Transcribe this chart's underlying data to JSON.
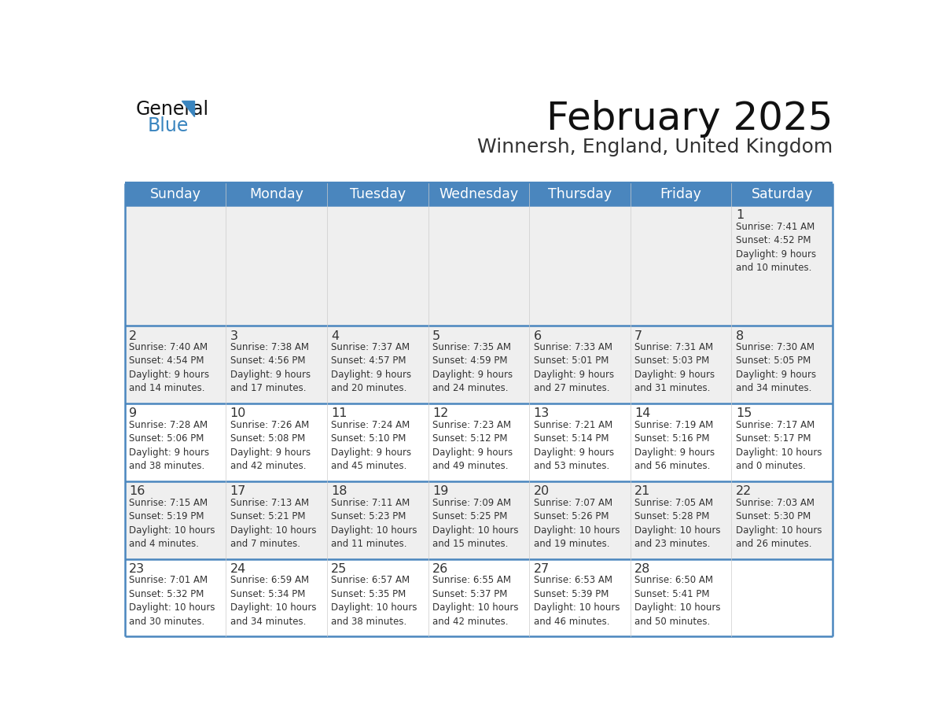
{
  "title": "February 2025",
  "subtitle": "Winnersh, England, United Kingdom",
  "header_bg": "#4a86be",
  "header_text_color": "#ffffff",
  "row_bg_gray": "#efefef",
  "row_bg_white": "#ffffff",
  "border_color": "#4a86be",
  "day_headers": [
    "Sunday",
    "Monday",
    "Tuesday",
    "Wednesday",
    "Thursday",
    "Friday",
    "Saturday"
  ],
  "days": [
    {
      "day": 1,
      "col": 6,
      "row": 0,
      "sunrise": "7:41 AM",
      "sunset": "4:52 PM",
      "daylight": "9 hours\nand 10 minutes."
    },
    {
      "day": 2,
      "col": 0,
      "row": 1,
      "sunrise": "7:40 AM",
      "sunset": "4:54 PM",
      "daylight": "9 hours\nand 14 minutes."
    },
    {
      "day": 3,
      "col": 1,
      "row": 1,
      "sunrise": "7:38 AM",
      "sunset": "4:56 PM",
      "daylight": "9 hours\nand 17 minutes."
    },
    {
      "day": 4,
      "col": 2,
      "row": 1,
      "sunrise": "7:37 AM",
      "sunset": "4:57 PM",
      "daylight": "9 hours\nand 20 minutes."
    },
    {
      "day": 5,
      "col": 3,
      "row": 1,
      "sunrise": "7:35 AM",
      "sunset": "4:59 PM",
      "daylight": "9 hours\nand 24 minutes."
    },
    {
      "day": 6,
      "col": 4,
      "row": 1,
      "sunrise": "7:33 AM",
      "sunset": "5:01 PM",
      "daylight": "9 hours\nand 27 minutes."
    },
    {
      "day": 7,
      "col": 5,
      "row": 1,
      "sunrise": "7:31 AM",
      "sunset": "5:03 PM",
      "daylight": "9 hours\nand 31 minutes."
    },
    {
      "day": 8,
      "col": 6,
      "row": 1,
      "sunrise": "7:30 AM",
      "sunset": "5:05 PM",
      "daylight": "9 hours\nand 34 minutes."
    },
    {
      "day": 9,
      "col": 0,
      "row": 2,
      "sunrise": "7:28 AM",
      "sunset": "5:06 PM",
      "daylight": "9 hours\nand 38 minutes."
    },
    {
      "day": 10,
      "col": 1,
      "row": 2,
      "sunrise": "7:26 AM",
      "sunset": "5:08 PM",
      "daylight": "9 hours\nand 42 minutes."
    },
    {
      "day": 11,
      "col": 2,
      "row": 2,
      "sunrise": "7:24 AM",
      "sunset": "5:10 PM",
      "daylight": "9 hours\nand 45 minutes."
    },
    {
      "day": 12,
      "col": 3,
      "row": 2,
      "sunrise": "7:23 AM",
      "sunset": "5:12 PM",
      "daylight": "9 hours\nand 49 minutes."
    },
    {
      "day": 13,
      "col": 4,
      "row": 2,
      "sunrise": "7:21 AM",
      "sunset": "5:14 PM",
      "daylight": "9 hours\nand 53 minutes."
    },
    {
      "day": 14,
      "col": 5,
      "row": 2,
      "sunrise": "7:19 AM",
      "sunset": "5:16 PM",
      "daylight": "9 hours\nand 56 minutes."
    },
    {
      "day": 15,
      "col": 6,
      "row": 2,
      "sunrise": "7:17 AM",
      "sunset": "5:17 PM",
      "daylight": "10 hours\nand 0 minutes."
    },
    {
      "day": 16,
      "col": 0,
      "row": 3,
      "sunrise": "7:15 AM",
      "sunset": "5:19 PM",
      "daylight": "10 hours\nand 4 minutes."
    },
    {
      "day": 17,
      "col": 1,
      "row": 3,
      "sunrise": "7:13 AM",
      "sunset": "5:21 PM",
      "daylight": "10 hours\nand 7 minutes."
    },
    {
      "day": 18,
      "col": 2,
      "row": 3,
      "sunrise": "7:11 AM",
      "sunset": "5:23 PM",
      "daylight": "10 hours\nand 11 minutes."
    },
    {
      "day": 19,
      "col": 3,
      "row": 3,
      "sunrise": "7:09 AM",
      "sunset": "5:25 PM",
      "daylight": "10 hours\nand 15 minutes."
    },
    {
      "day": 20,
      "col": 4,
      "row": 3,
      "sunrise": "7:07 AM",
      "sunset": "5:26 PM",
      "daylight": "10 hours\nand 19 minutes."
    },
    {
      "day": 21,
      "col": 5,
      "row": 3,
      "sunrise": "7:05 AM",
      "sunset": "5:28 PM",
      "daylight": "10 hours\nand 23 minutes."
    },
    {
      "day": 22,
      "col": 6,
      "row": 3,
      "sunrise": "7:03 AM",
      "sunset": "5:30 PM",
      "daylight": "10 hours\nand 26 minutes."
    },
    {
      "day": 23,
      "col": 0,
      "row": 4,
      "sunrise": "7:01 AM",
      "sunset": "5:32 PM",
      "daylight": "10 hours\nand 30 minutes."
    },
    {
      "day": 24,
      "col": 1,
      "row": 4,
      "sunrise": "6:59 AM",
      "sunset": "5:34 PM",
      "daylight": "10 hours\nand 34 minutes."
    },
    {
      "day": 25,
      "col": 2,
      "row": 4,
      "sunrise": "6:57 AM",
      "sunset": "5:35 PM",
      "daylight": "10 hours\nand 38 minutes."
    },
    {
      "day": 26,
      "col": 3,
      "row": 4,
      "sunrise": "6:55 AM",
      "sunset": "5:37 PM",
      "daylight": "10 hours\nand 42 minutes."
    },
    {
      "day": 27,
      "col": 4,
      "row": 4,
      "sunrise": "6:53 AM",
      "sunset": "5:39 PM",
      "daylight": "10 hours\nand 46 minutes."
    },
    {
      "day": 28,
      "col": 5,
      "row": 4,
      "sunrise": "6:50 AM",
      "sunset": "5:41 PM",
      "daylight": "10 hours\nand 50 minutes."
    }
  ],
  "num_rows": 5,
  "num_cols": 7,
  "text_color": "#333333",
  "day_num_color": "#333333",
  "info_font_size": 8.5,
  "day_num_font_size": 11.5,
  "header_font_size": 12.5,
  "title_font_size": 36,
  "subtitle_font_size": 18,
  "logo_general_size": 17,
  "logo_blue_size": 17
}
